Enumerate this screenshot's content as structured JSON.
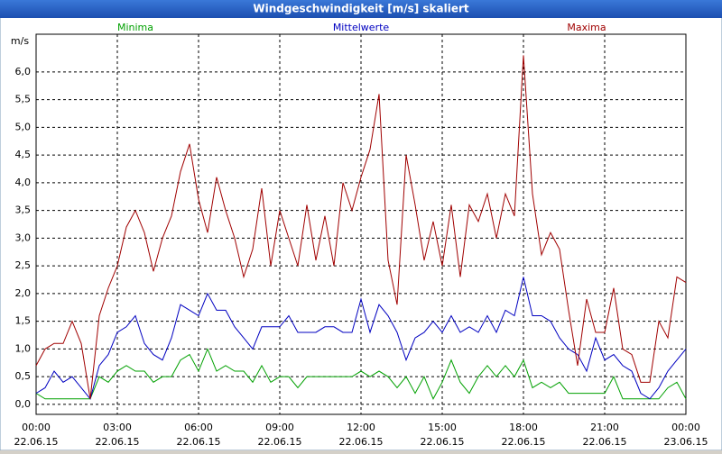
{
  "chart_data": {
    "type": "line",
    "title": "Windgeschwindigkeit [m/s] skaliert",
    "y_label": "m/s",
    "x": [
      0,
      20,
      40,
      60,
      80,
      100,
      120,
      140,
      160,
      180,
      200,
      220,
      240,
      260,
      280,
      300,
      320,
      340,
      360,
      380,
      400,
      420,
      440,
      460,
      480,
      500,
      520,
      540,
      560,
      580,
      600,
      620,
      640,
      660,
      680,
      700,
      720,
      740,
      760,
      780,
      800,
      820,
      840,
      860,
      880,
      900,
      920,
      940,
      960,
      980,
      1000,
      1020,
      1040,
      1060,
      1080,
      1100,
      1120,
      1140,
      1160,
      1180,
      1200,
      1220,
      1240,
      1260,
      1280,
      1300,
      1320,
      1340,
      1360,
      1380,
      1400,
      1420,
      1440
    ],
    "xlim": [
      0,
      1440
    ],
    "xticks": [
      {
        "value": 0,
        "label": "00:00",
        "date": "22.06.15"
      },
      {
        "value": 180,
        "label": "03:00",
        "date": "22.06.15"
      },
      {
        "value": 360,
        "label": "06:00",
        "date": "22.06.15"
      },
      {
        "value": 540,
        "label": "09:00",
        "date": "22.06.15"
      },
      {
        "value": 720,
        "label": "12:00",
        "date": "22.06.15"
      },
      {
        "value": 900,
        "label": "15:00",
        "date": "22.06.15"
      },
      {
        "value": 1080,
        "label": "18:00",
        "date": "22.06.15"
      },
      {
        "value": 1260,
        "label": "21:00",
        "date": "22.06.15"
      },
      {
        "value": 1440,
        "label": "00:00",
        "date": "23.06.15"
      }
    ],
    "ylim": [
      -0.18,
      6.68
    ],
    "yticks": [
      {
        "value": 0,
        "label": "0,0"
      },
      {
        "value": 0.5,
        "label": "0,5"
      },
      {
        "value": 1,
        "label": "1,0"
      },
      {
        "value": 1.5,
        "label": "1,5"
      },
      {
        "value": 2,
        "label": "2,0"
      },
      {
        "value": 2.5,
        "label": "2,5"
      },
      {
        "value": 3,
        "label": "3,0"
      },
      {
        "value": 3.5,
        "label": "3,5"
      },
      {
        "value": 4,
        "label": "4,0"
      },
      {
        "value": 4.5,
        "label": "4,5"
      },
      {
        "value": 5,
        "label": "5,0"
      },
      {
        "value": 5.5,
        "label": "5,5"
      },
      {
        "value": 6,
        "label": "6,0"
      }
    ],
    "grid": true,
    "series": [
      {
        "name": "Minima",
        "color": "#00a000",
        "values": [
          0.2,
          0.1,
          0.1,
          0.1,
          0.1,
          0.1,
          0.1,
          0.5,
          0.4,
          0.6,
          0.7,
          0.6,
          0.6,
          0.4,
          0.5,
          0.5,
          0.8,
          0.9,
          0.6,
          1.0,
          0.6,
          0.7,
          0.6,
          0.6,
          0.4,
          0.7,
          0.4,
          0.5,
          0.5,
          0.3,
          0.5,
          0.5,
          0.5,
          0.5,
          0.5,
          0.5,
          0.6,
          0.5,
          0.6,
          0.5,
          0.3,
          0.5,
          0.2,
          0.5,
          0.1,
          0.4,
          0.8,
          0.4,
          0.2,
          0.5,
          0.7,
          0.5,
          0.7,
          0.5,
          0.8,
          0.3,
          0.4,
          0.3,
          0.4,
          0.2,
          0.2,
          0.2,
          0.2,
          0.2,
          0.5,
          0.1,
          0.1,
          0.1,
          0.1,
          0.1,
          0.3,
          0.4,
          0.1
        ]
      },
      {
        "name": "Mittelwerte",
        "color": "#0000c0",
        "values": [
          0.2,
          0.3,
          0.6,
          0.4,
          0.5,
          0.3,
          0.1,
          0.7,
          0.9,
          1.3,
          1.4,
          1.6,
          1.1,
          0.9,
          0.8,
          1.2,
          1.8,
          1.7,
          1.6,
          2.0,
          1.7,
          1.7,
          1.4,
          1.2,
          1.0,
          1.4,
          1.4,
          1.4,
          1.6,
          1.3,
          1.3,
          1.3,
          1.4,
          1.4,
          1.3,
          1.3,
          1.9,
          1.3,
          1.8,
          1.6,
          1.3,
          0.8,
          1.2,
          1.3,
          1.5,
          1.3,
          1.6,
          1.3,
          1.4,
          1.3,
          1.6,
          1.3,
          1.7,
          1.6,
          2.3,
          1.6,
          1.6,
          1.5,
          1.2,
          1.0,
          0.9,
          0.6,
          1.2,
          0.8,
          0.9,
          0.7,
          0.6,
          0.2,
          0.1,
          0.3,
          0.6,
          0.8,
          1.0
        ]
      },
      {
        "name": "Maxima",
        "color": "#a00000",
        "values": [
          0.7,
          1.0,
          1.1,
          1.1,
          1.5,
          1.1,
          0.1,
          1.6,
          2.1,
          2.5,
          3.2,
          3.5,
          3.1,
          2.4,
          3.0,
          3.4,
          4.2,
          4.7,
          3.7,
          3.1,
          4.1,
          3.5,
          3.0,
          2.3,
          2.8,
          3.9,
          2.5,
          3.5,
          3.0,
          2.5,
          3.6,
          2.6,
          3.4,
          2.5,
          4.0,
          3.5,
          4.1,
          4.6,
          5.6,
          2.6,
          1.8,
          4.5,
          3.6,
          2.6,
          3.3,
          2.5,
          3.6,
          2.3,
          3.6,
          3.3,
          3.8,
          3.0,
          3.8,
          3.4,
          6.3,
          3.8,
          2.7,
          3.1,
          2.8,
          1.7,
          0.7,
          1.9,
          1.3,
          1.3,
          2.1,
          1.0,
          0.9,
          0.4,
          0.4,
          1.5,
          1.2,
          2.3,
          2.2
        ]
      }
    ]
  }
}
